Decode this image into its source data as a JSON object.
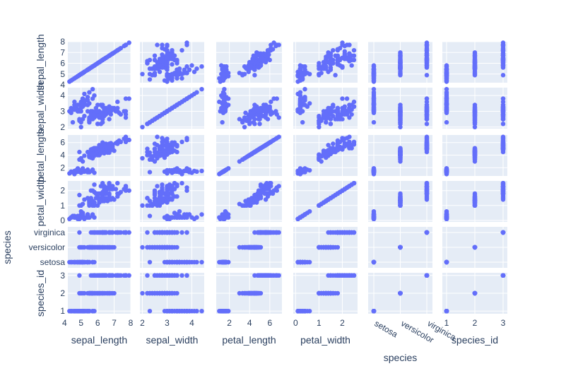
{
  "chart_data": {
    "type": "scatter-matrix",
    "title": "",
    "marker_color": "#636EFA",
    "background_color": "#E5ECF6",
    "dimensions": [
      "sepal_length",
      "sepal_width",
      "petal_length",
      "petal_width",
      "species",
      "species_id"
    ],
    "axes": {
      "sepal_length": {
        "kind": "numeric",
        "range": [
          4.2,
          8.0
        ],
        "ticks": [
          4,
          5,
          6,
          7,
          8
        ],
        "row_ticks": [
          4,
          5,
          6,
          7,
          8
        ]
      },
      "sepal_width": {
        "kind": "numeric",
        "range": [
          1.9,
          4.5
        ],
        "ticks": [
          2,
          3,
          4
        ],
        "row_ticks": [
          2,
          3,
          4
        ]
      },
      "petal_length": {
        "kind": "numeric",
        "range": [
          0.7,
          7.2
        ],
        "ticks": [
          2,
          4,
          6
        ],
        "row_ticks": [
          2,
          4,
          6
        ]
      },
      "petal_width": {
        "kind": "numeric",
        "range": [
          -0.1,
          2.65
        ],
        "ticks": [
          0,
          1,
          2
        ],
        "row_ticks": [
          0,
          1,
          2
        ]
      },
      "species": {
        "kind": "category",
        "categories": [
          "setosa",
          "versicolor",
          "virginica"
        ]
      },
      "species_id": {
        "kind": "numeric",
        "range": [
          0.85,
          3.15
        ],
        "ticks": [
          1,
          2,
          3
        ],
        "row_ticks": [
          1,
          2,
          3
        ]
      }
    },
    "x_axis_titles": [
      "sepal_length",
      "sepal_width",
      "petal_length",
      "petal_width",
      "species",
      "species_id"
    ],
    "y_axis_titles": [
      "sepal_length",
      "sepal_width",
      "petal_length",
      "petal_width",
      "species",
      "species_id"
    ],
    "species_x_title": "species",
    "points": {
      "setosa": [
        [
          5.1,
          3.5,
          1.4,
          0.2
        ],
        [
          4.9,
          3.0,
          1.4,
          0.2
        ],
        [
          4.7,
          3.2,
          1.3,
          0.2
        ],
        [
          4.6,
          3.1,
          1.5,
          0.2
        ],
        [
          5.0,
          3.6,
          1.4,
          0.2
        ],
        [
          5.4,
          3.9,
          1.7,
          0.4
        ],
        [
          4.6,
          3.4,
          1.4,
          0.3
        ],
        [
          5.0,
          3.4,
          1.5,
          0.2
        ],
        [
          4.4,
          2.9,
          1.4,
          0.2
        ],
        [
          4.9,
          3.1,
          1.5,
          0.1
        ],
        [
          5.4,
          3.7,
          1.5,
          0.2
        ],
        [
          4.8,
          3.4,
          1.6,
          0.2
        ],
        [
          4.8,
          3.0,
          1.4,
          0.1
        ],
        [
          4.3,
          3.0,
          1.1,
          0.1
        ],
        [
          5.8,
          4.0,
          1.2,
          0.2
        ],
        [
          5.7,
          4.4,
          1.5,
          0.4
        ],
        [
          5.4,
          3.9,
          1.3,
          0.4
        ],
        [
          5.1,
          3.5,
          1.4,
          0.3
        ],
        [
          5.7,
          3.8,
          1.7,
          0.3
        ],
        [
          5.1,
          3.8,
          1.5,
          0.3
        ],
        [
          5.4,
          3.4,
          1.7,
          0.2
        ],
        [
          5.1,
          3.7,
          1.5,
          0.4
        ],
        [
          4.6,
          3.6,
          1.0,
          0.2
        ],
        [
          5.1,
          3.3,
          1.7,
          0.5
        ],
        [
          4.8,
          3.4,
          1.9,
          0.2
        ],
        [
          5.0,
          3.0,
          1.6,
          0.2
        ],
        [
          5.0,
          3.4,
          1.6,
          0.4
        ],
        [
          5.2,
          3.5,
          1.5,
          0.2
        ],
        [
          5.2,
          3.4,
          1.4,
          0.2
        ],
        [
          4.7,
          3.2,
          1.6,
          0.2
        ],
        [
          4.8,
          3.1,
          1.6,
          0.2
        ],
        [
          5.4,
          3.4,
          1.5,
          0.4
        ],
        [
          5.2,
          4.1,
          1.5,
          0.1
        ],
        [
          5.5,
          4.2,
          1.4,
          0.2
        ],
        [
          4.9,
          3.1,
          1.5,
          0.1
        ],
        [
          5.0,
          3.2,
          1.2,
          0.2
        ],
        [
          5.5,
          3.5,
          1.3,
          0.2
        ],
        [
          4.9,
          3.1,
          1.5,
          0.1
        ],
        [
          4.4,
          3.0,
          1.3,
          0.2
        ],
        [
          5.1,
          3.4,
          1.5,
          0.2
        ],
        [
          5.0,
          3.5,
          1.3,
          0.3
        ],
        [
          4.5,
          2.3,
          1.3,
          0.3
        ],
        [
          4.4,
          3.2,
          1.3,
          0.2
        ],
        [
          5.0,
          3.5,
          1.6,
          0.6
        ],
        [
          5.1,
          3.8,
          1.9,
          0.4
        ],
        [
          4.8,
          3.0,
          1.4,
          0.3
        ],
        [
          5.1,
          3.8,
          1.6,
          0.2
        ],
        [
          4.6,
          3.2,
          1.4,
          0.2
        ],
        [
          5.3,
          3.7,
          1.5,
          0.2
        ],
        [
          5.0,
          3.3,
          1.4,
          0.2
        ]
      ],
      "versicolor": [
        [
          7.0,
          3.2,
          4.7,
          1.4
        ],
        [
          6.4,
          3.2,
          4.5,
          1.5
        ],
        [
          6.9,
          3.1,
          4.9,
          1.5
        ],
        [
          5.5,
          2.3,
          4.0,
          1.3
        ],
        [
          6.5,
          2.8,
          4.6,
          1.5
        ],
        [
          5.7,
          2.8,
          4.5,
          1.3
        ],
        [
          6.3,
          3.3,
          4.7,
          1.6
        ],
        [
          4.9,
          2.4,
          3.3,
          1.0
        ],
        [
          6.6,
          2.9,
          4.6,
          1.3
        ],
        [
          5.2,
          2.7,
          3.9,
          1.4
        ],
        [
          5.0,
          2.0,
          3.5,
          1.0
        ],
        [
          5.9,
          3.0,
          4.2,
          1.5
        ],
        [
          6.0,
          2.2,
          4.0,
          1.0
        ],
        [
          6.1,
          2.9,
          4.7,
          1.4
        ],
        [
          5.6,
          2.9,
          3.6,
          1.3
        ],
        [
          6.7,
          3.1,
          4.4,
          1.4
        ],
        [
          5.6,
          3.0,
          4.5,
          1.5
        ],
        [
          5.8,
          2.7,
          4.1,
          1.0
        ],
        [
          6.2,
          2.2,
          4.5,
          1.5
        ],
        [
          5.6,
          2.5,
          3.9,
          1.1
        ],
        [
          5.9,
          3.2,
          4.8,
          1.8
        ],
        [
          6.1,
          2.8,
          4.0,
          1.3
        ],
        [
          6.3,
          2.5,
          4.9,
          1.5
        ],
        [
          6.1,
          2.8,
          4.7,
          1.2
        ],
        [
          6.4,
          2.9,
          4.3,
          1.3
        ],
        [
          6.6,
          3.0,
          4.4,
          1.4
        ],
        [
          6.8,
          2.8,
          4.8,
          1.4
        ],
        [
          6.7,
          3.0,
          5.0,
          1.7
        ],
        [
          6.0,
          2.9,
          4.5,
          1.5
        ],
        [
          5.7,
          2.6,
          3.5,
          1.0
        ],
        [
          5.5,
          2.4,
          3.8,
          1.1
        ],
        [
          5.5,
          2.4,
          3.7,
          1.0
        ],
        [
          5.8,
          2.7,
          3.9,
          1.2
        ],
        [
          6.0,
          2.7,
          5.1,
          1.6
        ],
        [
          5.4,
          3.0,
          4.5,
          1.5
        ],
        [
          6.0,
          3.4,
          4.5,
          1.6
        ],
        [
          6.7,
          3.1,
          4.7,
          1.5
        ],
        [
          6.3,
          2.3,
          4.4,
          1.3
        ],
        [
          5.6,
          3.0,
          4.1,
          1.3
        ],
        [
          5.5,
          2.5,
          4.0,
          1.3
        ],
        [
          5.5,
          2.6,
          4.4,
          1.2
        ],
        [
          6.1,
          3.0,
          4.6,
          1.4
        ],
        [
          5.8,
          2.6,
          4.0,
          1.2
        ],
        [
          5.0,
          2.3,
          3.3,
          1.0
        ],
        [
          5.6,
          2.7,
          4.2,
          1.3
        ],
        [
          5.7,
          3.0,
          4.2,
          1.2
        ],
        [
          5.7,
          2.9,
          4.2,
          1.3
        ],
        [
          6.2,
          2.9,
          4.3,
          1.3
        ],
        [
          5.1,
          2.5,
          3.0,
          1.1
        ],
        [
          5.7,
          2.8,
          4.1,
          1.3
        ]
      ],
      "virginica": [
        [
          6.3,
          3.3,
          6.0,
          2.5
        ],
        [
          5.8,
          2.7,
          5.1,
          1.9
        ],
        [
          7.1,
          3.0,
          5.9,
          2.1
        ],
        [
          6.3,
          2.9,
          5.6,
          1.8
        ],
        [
          6.5,
          3.0,
          5.8,
          2.2
        ],
        [
          7.6,
          3.0,
          6.6,
          2.1
        ],
        [
          4.9,
          2.5,
          4.5,
          1.7
        ],
        [
          7.3,
          2.9,
          6.3,
          1.8
        ],
        [
          6.7,
          2.5,
          5.8,
          1.8
        ],
        [
          7.2,
          3.6,
          6.1,
          2.5
        ],
        [
          6.5,
          3.2,
          5.1,
          2.0
        ],
        [
          6.4,
          2.7,
          5.3,
          1.9
        ],
        [
          6.8,
          3.0,
          5.5,
          2.1
        ],
        [
          5.7,
          2.5,
          5.0,
          2.0
        ],
        [
          5.8,
          2.8,
          5.1,
          2.4
        ],
        [
          6.4,
          3.2,
          5.3,
          2.3
        ],
        [
          6.5,
          3.0,
          5.5,
          1.8
        ],
        [
          7.7,
          3.8,
          6.7,
          2.2
        ],
        [
          7.7,
          2.6,
          6.9,
          2.3
        ],
        [
          6.0,
          2.2,
          5.0,
          1.5
        ],
        [
          6.9,
          3.2,
          5.7,
          2.3
        ],
        [
          5.6,
          2.8,
          4.9,
          2.0
        ],
        [
          7.7,
          2.8,
          6.7,
          2.0
        ],
        [
          6.3,
          2.7,
          4.9,
          1.8
        ],
        [
          6.7,
          3.3,
          5.7,
          2.1
        ],
        [
          7.2,
          3.2,
          6.0,
          1.8
        ],
        [
          6.2,
          2.8,
          4.8,
          1.8
        ],
        [
          6.1,
          3.0,
          4.9,
          1.8
        ],
        [
          6.4,
          2.8,
          5.6,
          2.1
        ],
        [
          7.2,
          3.0,
          5.8,
          1.6
        ],
        [
          7.4,
          2.8,
          6.1,
          1.9
        ],
        [
          7.9,
          3.8,
          6.4,
          2.0
        ],
        [
          6.4,
          2.8,
          5.6,
          2.2
        ],
        [
          6.3,
          2.8,
          5.1,
          1.5
        ],
        [
          6.1,
          2.6,
          5.6,
          1.4
        ],
        [
          7.7,
          3.0,
          6.1,
          2.3
        ],
        [
          6.3,
          3.4,
          5.6,
          2.4
        ],
        [
          6.4,
          3.1,
          5.5,
          1.8
        ],
        [
          6.0,
          3.0,
          4.8,
          1.8
        ],
        [
          6.9,
          3.1,
          5.4,
          2.1
        ],
        [
          6.7,
          3.1,
          5.6,
          2.4
        ],
        [
          6.9,
          3.1,
          5.1,
          2.3
        ],
        [
          5.8,
          2.7,
          5.1,
          1.9
        ],
        [
          6.8,
          3.2,
          5.9,
          2.3
        ],
        [
          6.7,
          3.3,
          5.7,
          2.5
        ],
        [
          6.7,
          3.0,
          5.2,
          2.3
        ],
        [
          6.3,
          2.5,
          5.0,
          1.9
        ],
        [
          6.5,
          3.0,
          5.2,
          2.0
        ],
        [
          6.2,
          3.4,
          5.4,
          2.3
        ],
        [
          5.9,
          3.0,
          5.1,
          1.8
        ]
      ]
    }
  }
}
